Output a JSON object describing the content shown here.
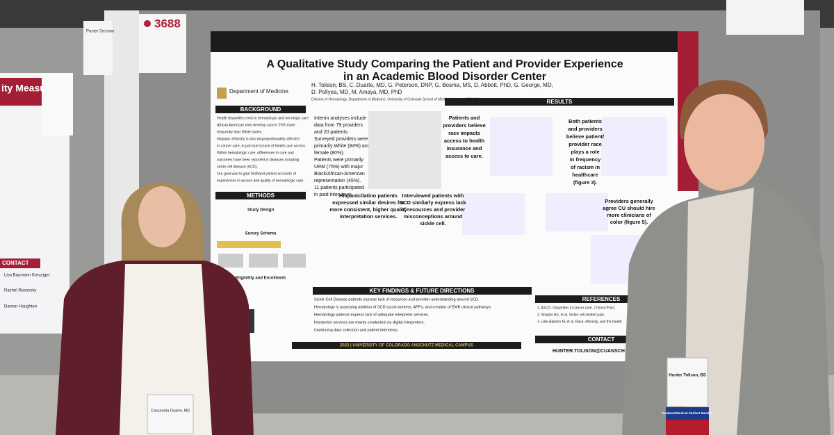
{
  "poster_number": "3688",
  "session_sign": "Poster Session",
  "poster": {
    "title": [
      "A Qualitative Study Comparing the Patient and Provider Experience",
      "in an Academic Blood Disorder Center"
    ],
    "authors": [
      "H. Tolison, BS, C. Duarte, MD, G. Peterson, DNP, G. Bosma, MS, D. Abbott, PhD, G. George, MD,",
      "D. Pollyea, MD, M. Amaya, MD, PhD"
    ],
    "affiliation": "Division of Hematology, Department of Medicine, University of Colorado School of Medicine, Aurora, CO, USA",
    "department": "Department of Medicine",
    "sections": {
      "background": {
        "heading": "BACKGROUND",
        "bullets": [
          "Health disparities exist in hematologic and oncologic care.",
          "African American men develop cancer 25% more",
          "frequently than White males.",
          "Hispanic ethnicity is also disproportionately affected",
          "in cancer care, in part due to lack of health care access.",
          "Within hematologic care, differences in care and",
          "outcomes have been reported in diseases including",
          "sickle cell disease (SCD).",
          "Our goal was to gain firsthand patient accounts of",
          "experiences in access and quality of hematologic care."
        ]
      },
      "methods": {
        "heading": "METHODS",
        "subheadings": [
          "Study Design",
          "Survey Schema",
          "Eligibility and Enrollment"
        ]
      },
      "interim": [
        "Interim analyses include",
        "data from 79 providers",
        "and 20 patients.",
        "Surveyed providers were",
        "primarily White (84%) and",
        "female (80%).",
        "Patients were primarily",
        "URM (75%) with major",
        "Black/African-American",
        "representation (45%).",
        "11 patients participated",
        "in paid interviews."
      ],
      "results": {
        "heading": "RESULTS",
        "findings": [
          [
            "Patients and",
            "providers believe",
            "race impacts",
            "access to health",
            "insurance and",
            "access to care."
          ],
          [
            "Both patients",
            "and providers",
            "believe patient/",
            "provider race",
            "plays a role",
            "in frequency",
            "of racism in",
            "healthcare",
            "(figure 3)."
          ],
          [
            "Hispanic/latino patients",
            "expressed similar desires for",
            "more consistent, higher quality",
            "interpretation services."
          ],
          [
            "Interviewed patients with",
            "SCD similarly express lack",
            "of resources and provider",
            "misconceptions around",
            "sickle cell."
          ],
          [
            "Providers generally",
            "agree CU should hire",
            "more clinicians of",
            "color (figure 5)."
          ]
        ]
      },
      "key_findings": {
        "heading": "KEY FINDINGS & FUTURE DIRECTIONS",
        "bullets": [
          "Sickle Cell Disease patients express lack of resources and provider understanding around SCD.",
          "Hematology is assessing addition of SCD social workers, APPs, and creation of EMR clinical pathways",
          "Hematology patients express lack of adequate interpreter services.",
          "Interpreter services are mainly conducted via digital interpreters.",
          "Continuing data collection and patient interviews."
        ]
      },
      "references": {
        "heading": "REFERENCES",
        "items": [
          "1. ASCO. Disparities in cancer care. J Oncol Pract.",
          "2. Shapiro BS, et al. Sickle cell-related pain.",
          "3. Lillie-Blanton M, et al. Race, ethnicity, and the health"
        ]
      },
      "contact": {
        "heading": "CONTACT",
        "email": "HUNTER.TOLISON@CUANSCH"
      }
    },
    "footer": "2023 | UNIVERSITY OF COLORADO ANSCHUTZ MEDICAL CAMPUS"
  },
  "side_poster": {
    "title": "ity Measure",
    "contact": "CONTACT",
    "names": [
      "Lisa Baumann Kreuziger",
      "Rachel Rosovsky",
      "Damon Houghton"
    ]
  },
  "badges": [
    {
      "name": "Cassandra Duarte, MD"
    },
    {
      "name": "Hunter Tolison, BS",
      "ribbon": "Graduate/Medical Student Member"
    }
  ]
}
